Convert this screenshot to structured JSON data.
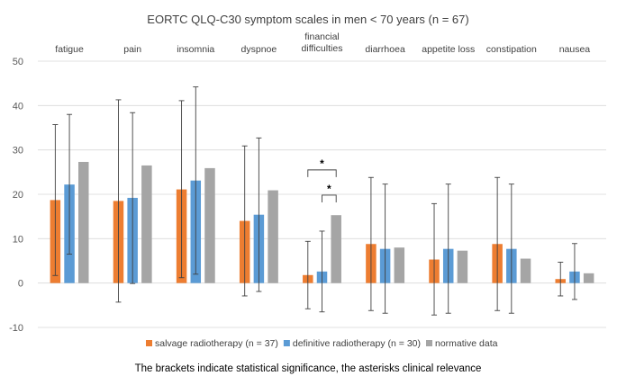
{
  "chart_data": {
    "type": "bar",
    "title": "EORTC QLQ-C30 symptom scales in men < 70 years (n = 67)",
    "categories": [
      "fatigue",
      "pain",
      "insomnia",
      "dyspnoe",
      "financial difficulties",
      "diarrhoea",
      "appetite loss",
      "constipation",
      "nausea"
    ],
    "category_labels": [
      [
        "fatigue"
      ],
      [
        "pain"
      ],
      [
        "insomnia"
      ],
      [
        "dyspnoe"
      ],
      [
        "financial",
        "difficulties"
      ],
      [
        "diarrhoea"
      ],
      [
        "appetite loss"
      ],
      [
        "constipation"
      ],
      [
        "nausea"
      ]
    ],
    "series": [
      {
        "name": "salvage radiotherapy (n = 37)",
        "color": "#ED7D31",
        "values": [
          18.7,
          18.5,
          21.1,
          14.0,
          1.8,
          8.8,
          5.3,
          8.8,
          0.9
        ],
        "err_low": [
          1.7,
          -4.3,
          1.2,
          -2.9,
          -5.8,
          -6.2,
          -7.2,
          -6.2,
          -2.9
        ],
        "err_high": [
          35.7,
          41.3,
          41.1,
          30.9,
          9.4,
          23.8,
          17.9,
          23.8,
          4.7
        ]
      },
      {
        "name": "definitive radiotherapy (n = 30)",
        "color": "#5B9BD5",
        "values": [
          22.2,
          19.2,
          23.1,
          15.4,
          2.6,
          7.7,
          7.7,
          7.7,
          2.6
        ],
        "err_low": [
          6.5,
          -0.1,
          2.0,
          -1.9,
          -6.5,
          -6.8,
          -6.8,
          -6.8,
          -3.7
        ],
        "err_high": [
          38.0,
          38.4,
          44.2,
          32.7,
          11.7,
          22.3,
          22.3,
          22.3,
          8.9
        ]
      },
      {
        "name": "normative data",
        "color": "#A5A5A5",
        "values": [
          27.3,
          26.5,
          25.9,
          20.9,
          15.3,
          8.0,
          7.3,
          5.5,
          2.2
        ]
      }
    ],
    "ylim": [
      -10,
      50
    ],
    "yticks": [
      -10,
      0,
      10,
      20,
      30,
      40,
      50
    ],
    "grid": true,
    "legend_position": "bottom",
    "annotations": [
      {
        "text": "*",
        "category": "financial difficulties",
        "between": [
          "salvage radiotherapy (n = 37)",
          "normative data"
        ],
        "level": 25.5
      },
      {
        "text": "*",
        "category": "financial difficulties",
        "between": [
          "definitive radiotherapy (n = 30)",
          "normative data"
        ],
        "level": 19.8
      }
    ],
    "footnote": "The brackets indicate statistical significance, the asterisks clinical relevance"
  }
}
